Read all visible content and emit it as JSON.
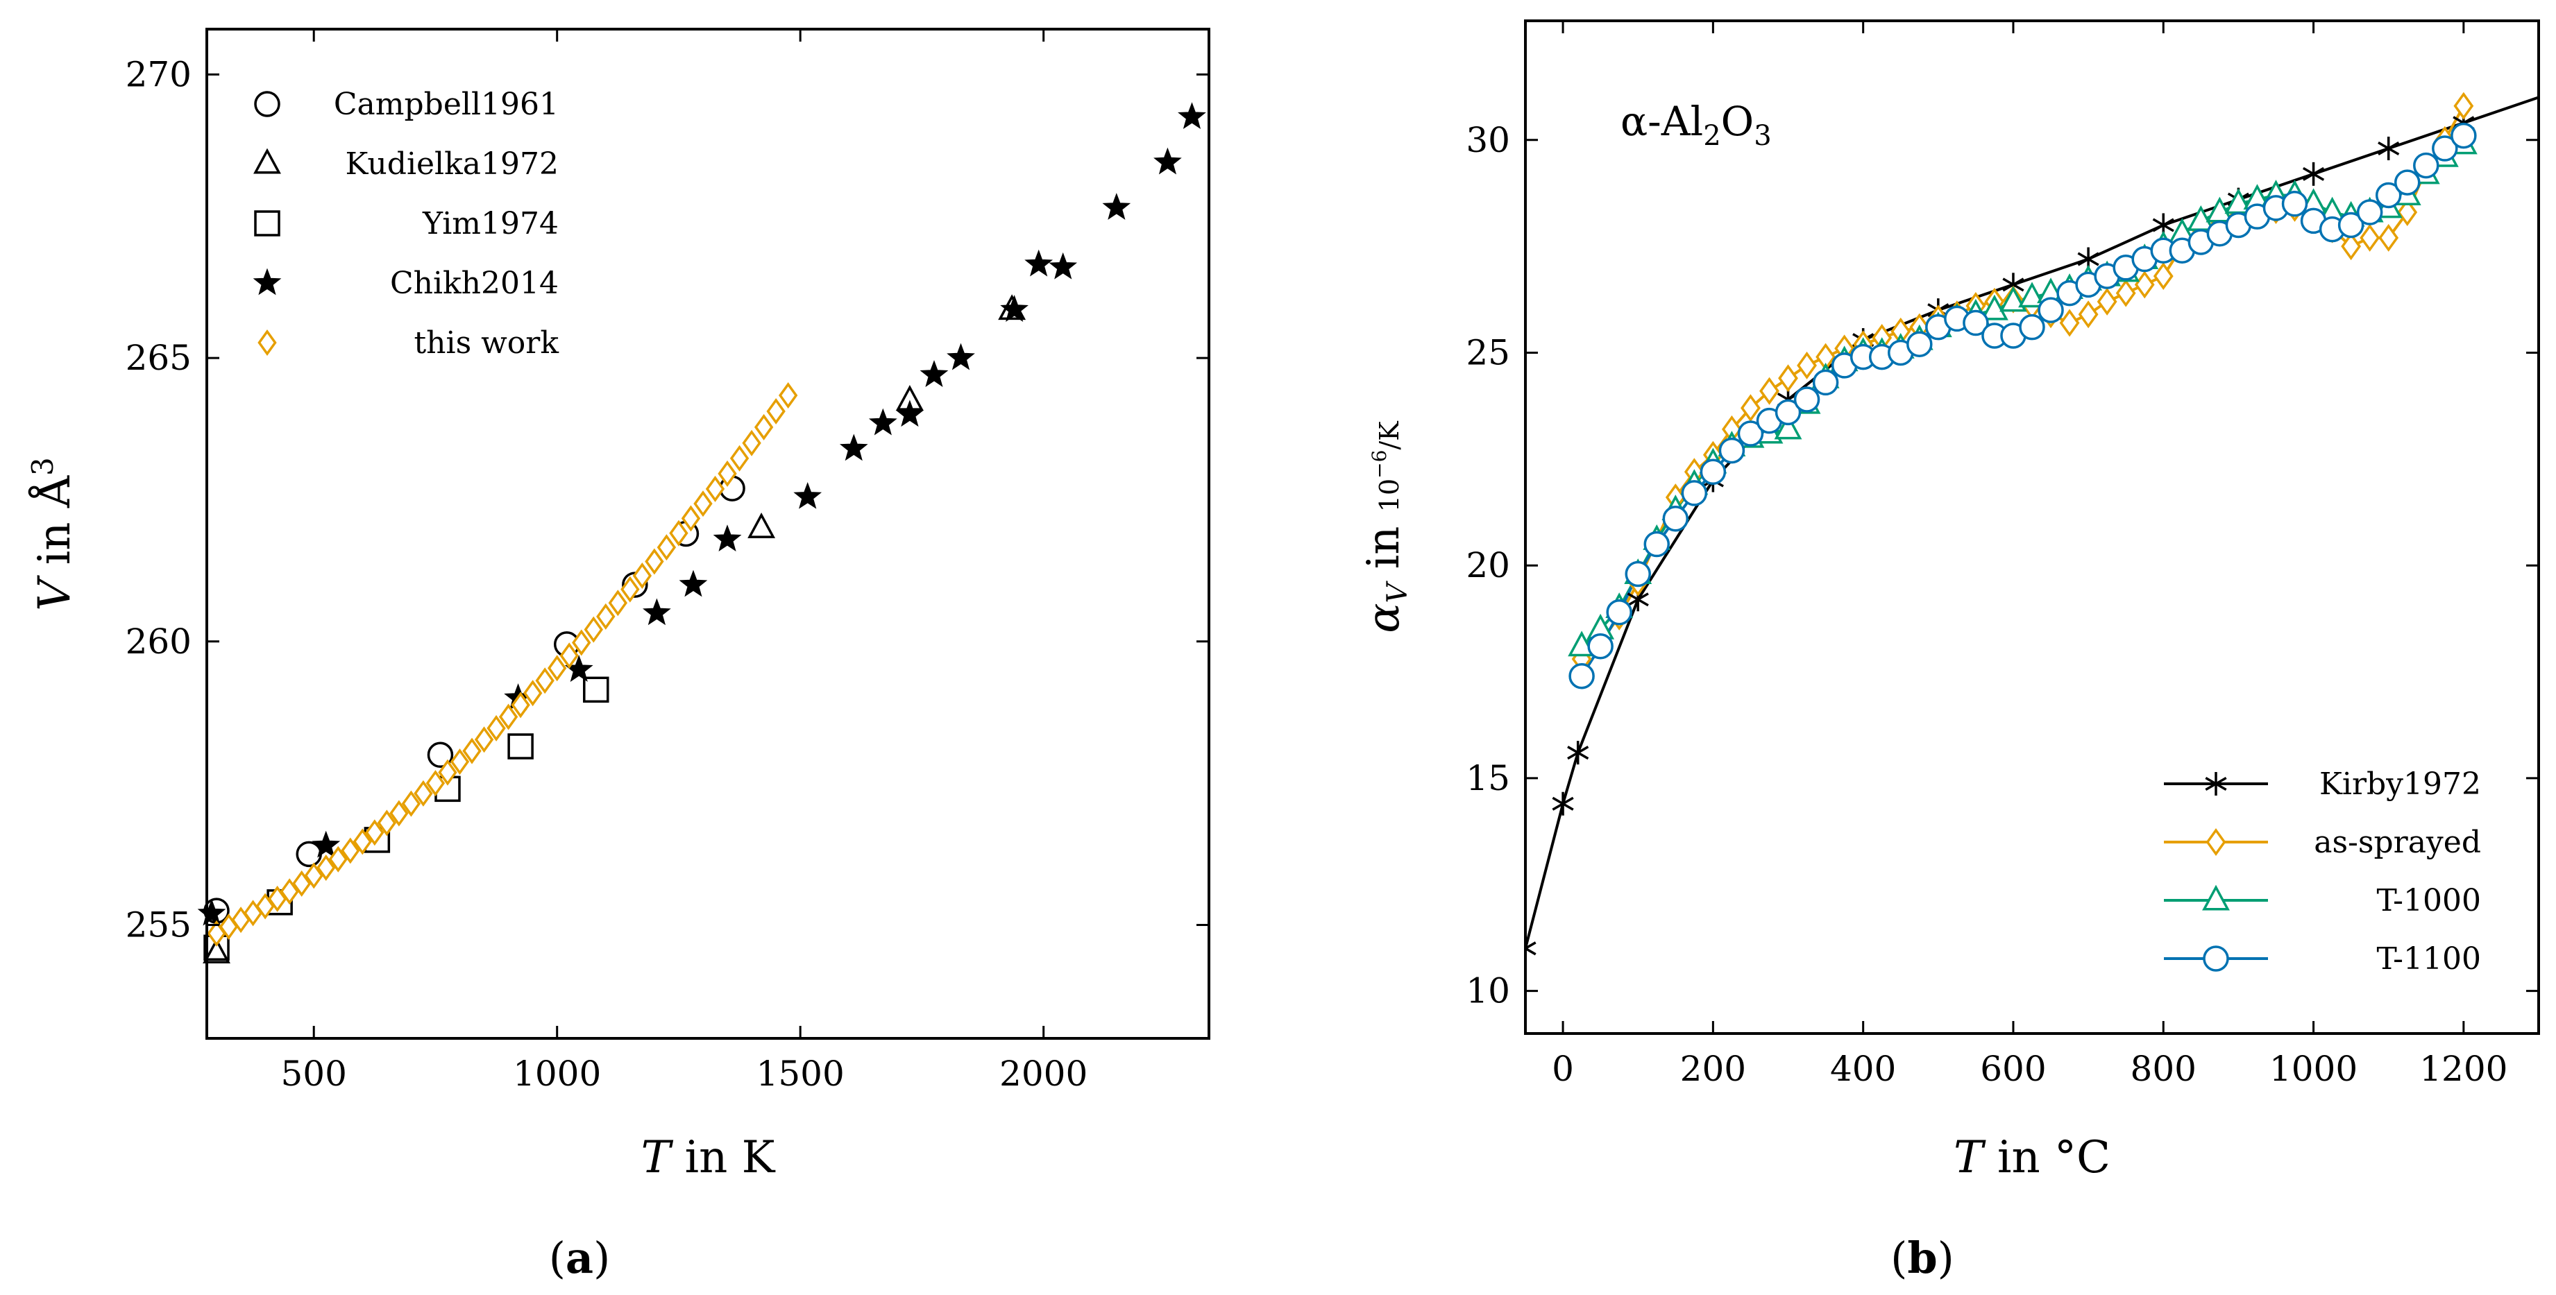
{
  "colors": {
    "orange": "#E69F00",
    "green": "#009E73",
    "blue": "#0072B2",
    "black": "#000000"
  },
  "chart_data": [
    {
      "id": "a",
      "type": "scatter",
      "caption_open": "(",
      "caption_letter": "a",
      "caption_close": ")",
      "xlabel_var": "T",
      "xlabel_rest": " in K",
      "ylabel_var": "V",
      "ylabel_mid": " in Å",
      "ylabel_sup": "3",
      "xlim": [
        280,
        2340
      ],
      "ylim": [
        253.0,
        270.8
      ],
      "xticks": [
        500,
        1000,
        1500,
        2000
      ],
      "yticks": [
        255,
        260,
        265,
        270
      ],
      "legend_position": "top-left",
      "series": [
        {
          "name": "Campbell1961",
          "marker": "circle",
          "color": "#000000",
          "x": [
            300,
            490,
            760,
            1020,
            1160,
            1265,
            1360
          ],
          "y": [
            255.25,
            256.25,
            258.0,
            259.95,
            261.0,
            261.9,
            262.7
          ]
        },
        {
          "name": "Kudielka1972",
          "marker": "triangle",
          "color": "#000000",
          "x": [
            300,
            1420,
            1725,
            1935
          ],
          "y": [
            254.5,
            262.0,
            264.25,
            265.85
          ]
        },
        {
          "name": "Yim1974",
          "marker": "square",
          "color": "#000000",
          "x": [
            300,
            430,
            630,
            775,
            925,
            1080
          ],
          "y": [
            254.6,
            255.4,
            256.5,
            257.4,
            258.15,
            259.15
          ]
        },
        {
          "name": "Chikh2014",
          "marker": "star",
          "color": "#000000",
          "x": [
            290,
            525,
            920,
            1045,
            1205,
            1280,
            1350,
            1515,
            1610,
            1670,
            1725,
            1775,
            1830,
            1940,
            1990,
            2040,
            2150,
            2255,
            2305
          ],
          "y": [
            255.2,
            256.4,
            259.0,
            259.5,
            260.5,
            261.0,
            261.8,
            262.55,
            263.4,
            263.85,
            264.0,
            264.7,
            265.0,
            265.85,
            266.65,
            266.6,
            267.65,
            268.45,
            269.25
          ]
        },
        {
          "name": "this work",
          "marker": "diamond",
          "color": "#E69F00",
          "x": [
            300,
            325,
            350,
            375,
            400,
            425,
            450,
            475,
            500,
            525,
            550,
            575,
            600,
            625,
            650,
            675,
            700,
            725,
            750,
            775,
            800,
            825,
            850,
            875,
            900,
            925,
            950,
            975,
            1000,
            1025,
            1050,
            1075,
            1100,
            1125,
            1150,
            1175,
            1200,
            1225,
            1250,
            1275,
            1300,
            1325,
            1350,
            1375,
            1400,
            1425,
            1450,
            1475
          ],
          "y": [
            254.85,
            254.97,
            255.09,
            255.21,
            255.33,
            255.46,
            255.59,
            255.73,
            255.87,
            256.01,
            256.16,
            256.31,
            256.47,
            256.63,
            256.8,
            256.97,
            257.14,
            257.32,
            257.5,
            257.69,
            257.88,
            258.07,
            258.27,
            258.47,
            258.67,
            258.88,
            259.09,
            259.31,
            259.53,
            259.75,
            259.98,
            260.21,
            260.44,
            260.68,
            260.92,
            261.16,
            261.41,
            261.66,
            261.91,
            262.17,
            262.43,
            262.69,
            262.96,
            263.23,
            263.5,
            263.78,
            264.06,
            264.34
          ]
        }
      ]
    },
    {
      "id": "b",
      "type": "line",
      "caption_open": "(",
      "caption_letter": "b",
      "caption_close": ")",
      "annotation_main": "α-Al",
      "annotation_sub1": "2",
      "annotation_mid": "O",
      "annotation_sub2": "3",
      "xlabel_var": "T",
      "xlabel_rest": " in °C",
      "ylabel_var": "α",
      "ylabel_sub": "V",
      "ylabel_in": " in ",
      "ylabel_unit_base": "10",
      "ylabel_unit_exp": "−6",
      "ylabel_unit_den": "/K",
      "xlim": [
        -50,
        1300
      ],
      "ylim": [
        9.0,
        32.8
      ],
      "xticks": [
        0,
        200,
        400,
        600,
        800,
        1000,
        1200
      ],
      "yticks": [
        10,
        15,
        20,
        25,
        30
      ],
      "legend_position": "bottom-right",
      "series": [
        {
          "name": "Kirby1972",
          "marker": "asterisk",
          "color": "#000000",
          "x": [
            -50,
            0,
            20,
            100,
            200,
            300,
            400,
            500,
            600,
            700,
            800,
            900,
            1000,
            1100,
            1200,
            1300
          ],
          "y": [
            11.0,
            14.4,
            15.6,
            19.2,
            22.0,
            23.9,
            25.3,
            26.0,
            26.6,
            27.2,
            28.0,
            28.6,
            29.2,
            29.8,
            30.4,
            31.0
          ]
        },
        {
          "name": "as-sprayed",
          "marker": "diamond",
          "color": "#E69F00",
          "x": [
            25,
            50,
            75,
            100,
            125,
            150,
            175,
            200,
            225,
            250,
            275,
            300,
            325,
            350,
            375,
            400,
            425,
            450,
            475,
            500,
            525,
            550,
            575,
            600,
            625,
            650,
            675,
            700,
            725,
            750,
            775,
            800,
            825,
            850,
            875,
            900,
            925,
            950,
            975,
            1000,
            1025,
            1050,
            1075,
            1100,
            1125,
            1150,
            1175,
            1200
          ],
          "y": [
            17.8,
            18.2,
            18.8,
            19.6,
            20.6,
            21.6,
            22.2,
            22.6,
            23.2,
            23.7,
            24.1,
            24.4,
            24.7,
            24.9,
            25.1,
            25.2,
            25.35,
            25.5,
            25.6,
            25.8,
            25.9,
            26.1,
            26.2,
            26.25,
            26.1,
            25.9,
            25.7,
            25.9,
            26.2,
            26.4,
            26.6,
            26.8,
            27.5,
            27.9,
            28.1,
            28.2,
            28.3,
            28.35,
            28.4,
            28.2,
            27.9,
            27.5,
            27.7,
            27.7,
            28.3,
            29.3,
            30.0,
            30.8
          ]
        },
        {
          "name": "T-1000",
          "marker": "triangle",
          "color": "#009E73",
          "x": [
            25,
            50,
            75,
            100,
            125,
            150,
            175,
            200,
            225,
            250,
            275,
            300,
            325,
            350,
            375,
            400,
            425,
            450,
            475,
            500,
            525,
            550,
            575,
            600,
            625,
            650,
            675,
            700,
            725,
            750,
            775,
            800,
            825,
            850,
            875,
            900,
            925,
            950,
            975,
            1000,
            1025,
            1050,
            1075,
            1100,
            1125,
            1150,
            1175,
            1200
          ],
          "y": [
            18.1,
            18.5,
            19.0,
            19.8,
            20.6,
            21.3,
            21.9,
            22.4,
            22.8,
            23.0,
            23.1,
            23.2,
            23.8,
            24.4,
            24.8,
            25.0,
            25.0,
            25.1,
            25.3,
            25.6,
            25.8,
            25.9,
            26.0,
            26.2,
            26.3,
            26.4,
            26.5,
            26.7,
            26.8,
            26.9,
            27.2,
            27.5,
            27.8,
            28.1,
            28.3,
            28.5,
            28.6,
            28.7,
            28.7,
            28.5,
            28.3,
            28.2,
            28.3,
            28.4,
            28.7,
            29.2,
            29.6,
            29.9
          ]
        },
        {
          "name": "T-1100",
          "marker": "circle",
          "color": "#0072B2",
          "x": [
            25,
            50,
            75,
            100,
            125,
            150,
            175,
            200,
            225,
            250,
            275,
            300,
            325,
            350,
            375,
            400,
            425,
            450,
            475,
            500,
            525,
            550,
            575,
            600,
            625,
            650,
            675,
            700,
            725,
            750,
            775,
            800,
            825,
            850,
            875,
            900,
            925,
            950,
            975,
            1000,
            1025,
            1050,
            1075,
            1100,
            1125,
            1150,
            1175,
            1200
          ],
          "y": [
            17.4,
            18.1,
            18.9,
            19.8,
            20.5,
            21.1,
            21.7,
            22.2,
            22.7,
            23.1,
            23.4,
            23.6,
            23.9,
            24.3,
            24.7,
            24.9,
            24.9,
            25.0,
            25.2,
            25.6,
            25.8,
            25.7,
            25.4,
            25.4,
            25.6,
            26.0,
            26.4,
            26.6,
            26.8,
            27.0,
            27.2,
            27.4,
            27.4,
            27.6,
            27.8,
            28.0,
            28.2,
            28.4,
            28.5,
            28.1,
            27.9,
            28.0,
            28.3,
            28.7,
            29.0,
            29.4,
            29.8,
            30.1
          ]
        }
      ]
    }
  ]
}
